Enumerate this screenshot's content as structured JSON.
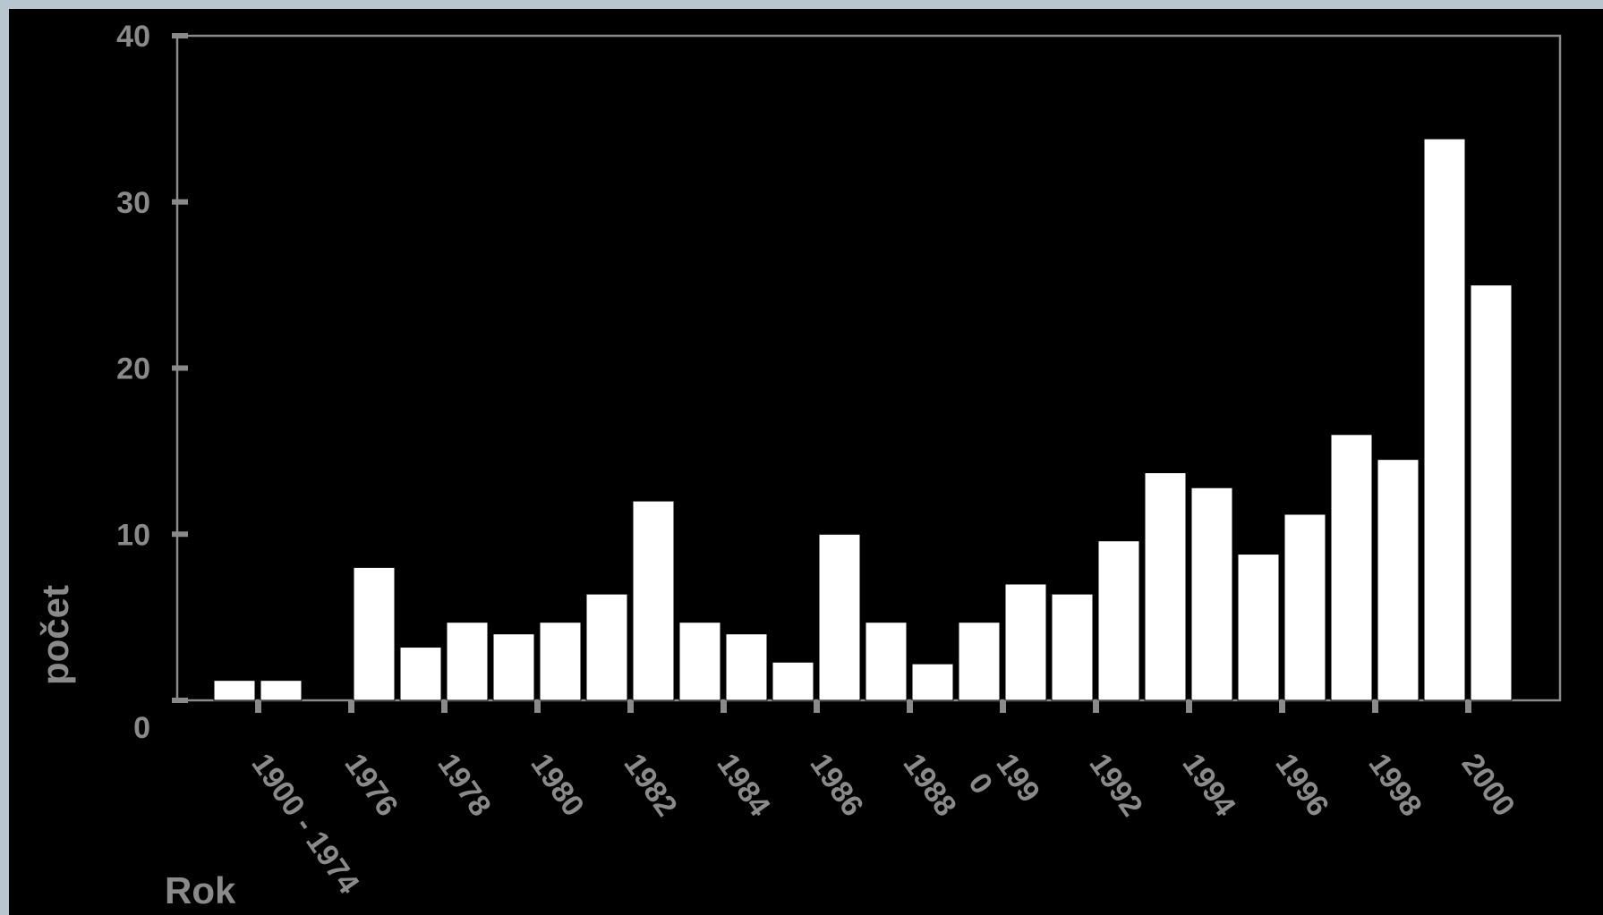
{
  "colors": {
    "slide_background": "#000000",
    "frame": "#b8c6cf",
    "axis": "#8a8a8a",
    "bar_fill": "#ffffff",
    "text": "#8a8a8a"
  },
  "chart_data": {
    "type": "bar",
    "title": "",
    "xlabel": "Rok",
    "ylabel": "počet",
    "ylim": [
      0,
      40
    ],
    "yticks": [
      "0",
      "10",
      "20",
      "30",
      "40"
    ],
    "x_tick_labels": [
      "1900 - 1974",
      "1976",
      "1978",
      "1980",
      "1982",
      "1984",
      "1986",
      "1988",
      "199\n0",
      "1992",
      "1994",
      "1996",
      "1998",
      "2000"
    ],
    "values": [
      1.2,
      1.2,
      0,
      8,
      3.2,
      4.7,
      4,
      4.7,
      6.4,
      12,
      4.7,
      4,
      2.3,
      10,
      4.7,
      2.2,
      4.7,
      7,
      6.4,
      9.6,
      13.7,
      12.8,
      8.8,
      11.2,
      16,
      14.5,
      33.8,
      25
    ],
    "grid": false,
    "legend": "none"
  }
}
